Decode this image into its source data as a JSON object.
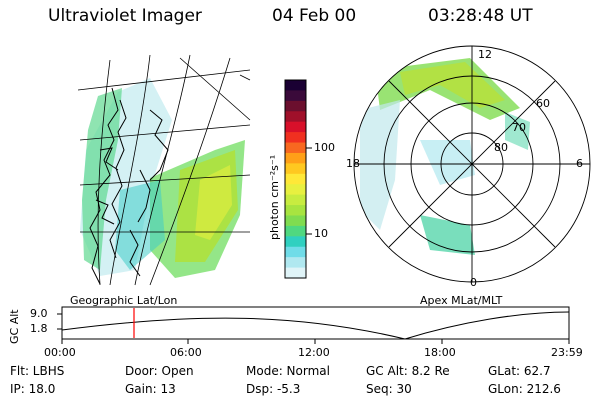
{
  "header": {
    "title": "Ultraviolet Imager",
    "date": "04 Feb 00",
    "time": "03:28:48 UT"
  },
  "left_panel": {
    "caption": "Geographic Lat/Lon"
  },
  "right_panel": {
    "caption": "Apex MLat/MLT",
    "mlt_labels": [
      "12",
      "18",
      "6",
      "0"
    ],
    "lat_labels": [
      "60",
      "70",
      "80"
    ]
  },
  "colorbar": {
    "unit_label": "photon cm⁻²s⁻¹",
    "ticks": [
      "100",
      "10"
    ],
    "colors": [
      "#1a0033",
      "#3a0a3a",
      "#6b0f2e",
      "#a0102a",
      "#d8102a",
      "#f03020",
      "#f86820",
      "#ffa018",
      "#ffc820",
      "#ffe838",
      "#e8f040",
      "#c8ec40",
      "#a8e440",
      "#80dc50",
      "#50d880",
      "#30d0c0",
      "#70dce8",
      "#b0e8f0",
      "#e0f4f8"
    ]
  },
  "altitude_plot": {
    "ylabel": "GC Alt",
    "y_ticks": [
      "9.0",
      "1.8"
    ],
    "x_ticks": [
      "00:00",
      "06:00",
      "12:00",
      "18:00",
      "23:59"
    ],
    "marker_color": "#ff0000"
  },
  "info": {
    "filter": "Flt: LBHS",
    "door": "Door: Open",
    "mode": "Mode: Normal",
    "gc_alt": "GC Alt: 8.2 Re",
    "glat": "GLat:  62.7",
    "ip": "IP: 18.0",
    "gain": "Gain: 13",
    "dsp": "Dsp:    -5.3",
    "seq": "Seq: 30",
    "glon": "GLon: 212.6"
  }
}
